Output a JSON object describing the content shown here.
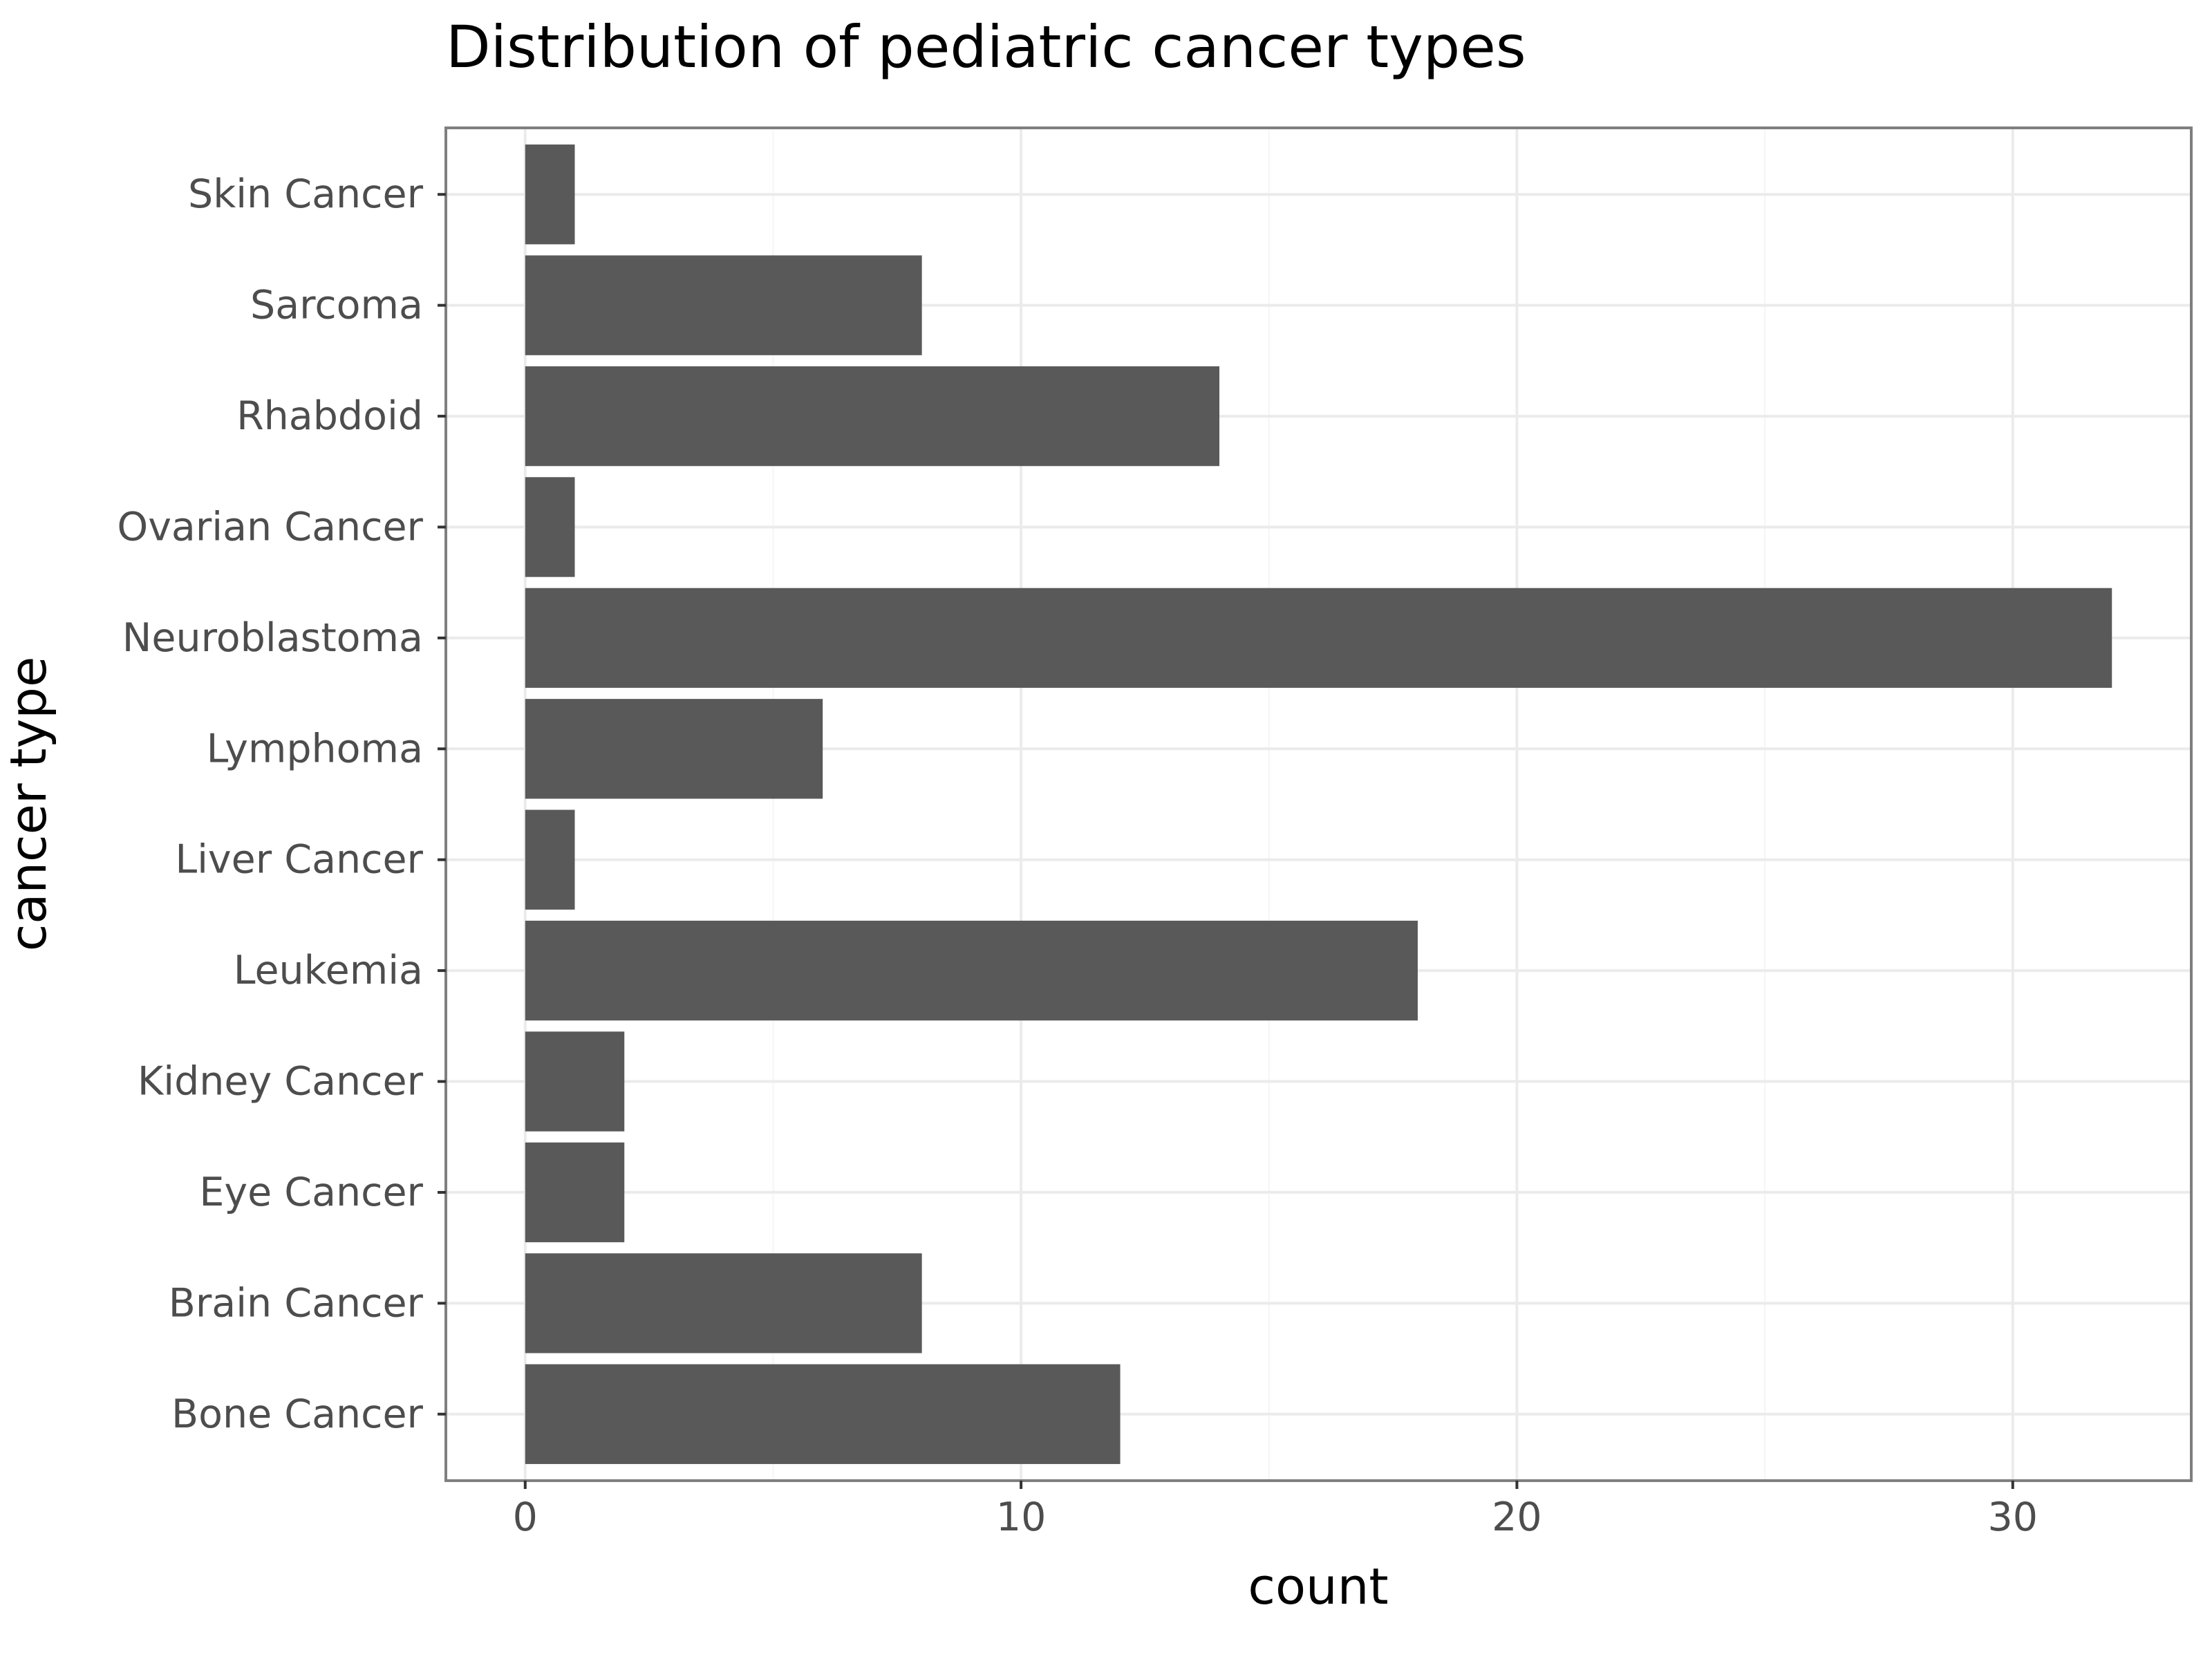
{
  "chart_data": {
    "type": "bar",
    "orientation": "horizontal",
    "title": "Distribution of pediatric cancer types",
    "xlabel": "count",
    "ylabel": "cancer type",
    "categories": [
      "Bone Cancer",
      "Brain Cancer",
      "Eye Cancer",
      "Kidney Cancer",
      "Leukemia",
      "Liver Cancer",
      "Lymphoma",
      "Neuroblastoma",
      "Ovarian Cancer",
      "Rhabdoid",
      "Sarcoma",
      "Skin Cancer"
    ],
    "values": [
      12,
      8,
      2,
      2,
      18,
      1,
      6,
      32,
      1,
      14,
      8,
      1
    ],
    "xlim": [
      -1.6,
      33.6
    ],
    "xticks": [
      0,
      10,
      20,
      30
    ],
    "xtick_labels": [
      "0",
      "10",
      "20",
      "30"
    ],
    "grid": true,
    "bar_color": "#595959",
    "panel_border_color": "#7f7f7f",
    "grid_major_color": "#ebebeb",
    "grid_minor_color": "#f5f5f5"
  }
}
